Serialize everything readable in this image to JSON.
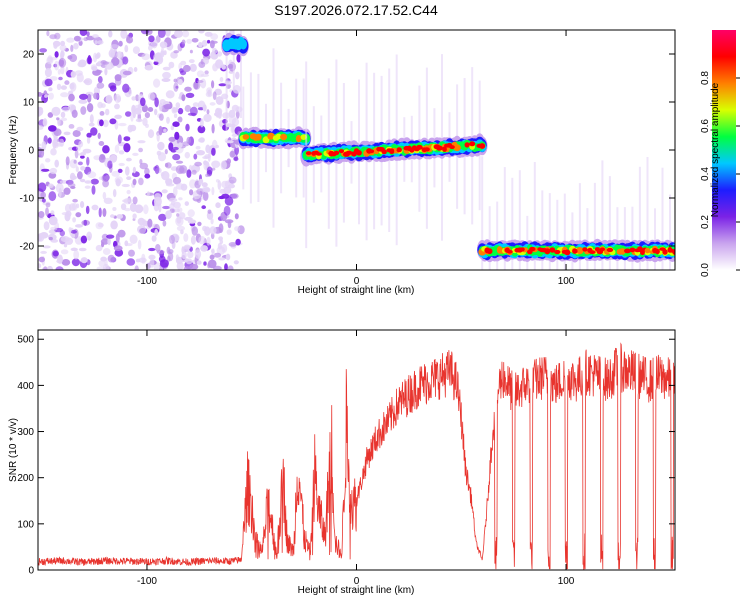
{
  "figure_title": "S197.2026.072.17.52.C44",
  "chart_data": [
    {
      "type": "heatmap",
      "title": "S197.2026.072.17.52.C44",
      "xlabel": "Height of straight line (km)",
      "ylabel": "Frequency (Hz)",
      "xlim": [
        -152,
        152
      ],
      "ylim": [
        -25,
        25
      ],
      "xticks": [
        -100,
        0,
        100
      ],
      "yticks": [
        -20,
        -10,
        0,
        10,
        20
      ],
      "colorbar": {
        "label": "Normalized spectral amplitude",
        "range": [
          0,
          1
        ],
        "ticks": [
          "0.0",
          "0.2",
          "0.4",
          "0.6",
          "0.8"
        ],
        "tick_values": [
          0,
          0.2,
          0.4,
          0.6,
          0.8
        ],
        "colors": [
          "#ffffff",
          "#c9a4ee",
          "#7b22e6",
          "#1d1dff",
          "#00c8ff",
          "#00ff40",
          "#d9ff00",
          "#ff7f00",
          "#ff0000",
          "#ff0066"
        ]
      },
      "segments": [
        {
          "x_start": -152,
          "x_end": -55,
          "frequency": null,
          "description": "noise"
        },
        {
          "x_start": -62,
          "x_end": -54,
          "frequency": 22,
          "amplitude": 0.45
        },
        {
          "x_start": -54,
          "x_end": -24,
          "frequency": 2.5,
          "amplitude": 0.7
        },
        {
          "x_start": -24,
          "x_end": 60,
          "frequency_start": -1,
          "frequency_end": 1,
          "amplitude": 0.85
        },
        {
          "x_start": 60,
          "x_end": 152,
          "frequency": -21,
          "amplitude": 0.85
        }
      ]
    },
    {
      "type": "line",
      "xlabel": "Height of straight line (km)",
      "ylabel": "SNR (10 * v/v)",
      "xlim": [
        -152,
        152
      ],
      "ylim": [
        0,
        520
      ],
      "xticks": [
        -100,
        0,
        100
      ],
      "yticks": [
        0,
        100,
        200,
        300,
        400,
        500
      ],
      "series": [
        {
          "name": "SNR",
          "color": "#e8342e",
          "x": [
            -152,
            -140,
            -130,
            -120,
            -110,
            -100,
            -90,
            -80,
            -70,
            -60,
            -55,
            -52,
            -50,
            -48,
            -45,
            -42,
            -40,
            -38,
            -35,
            -33,
            -30,
            -28,
            -25,
            -22,
            -20,
            -18,
            -15,
            -12,
            -10,
            -7,
            -5,
            -2,
            0,
            5,
            10,
            15,
            20,
            25,
            30,
            35,
            40,
            45,
            48,
            50,
            52,
            55,
            57,
            60,
            62,
            65,
            68,
            70,
            75,
            80,
            85,
            90,
            95,
            100,
            105,
            110,
            115,
            120,
            125,
            130,
            135,
            140,
            145,
            150,
            152
          ],
          "values": [
            18,
            20,
            17,
            20,
            19,
            18,
            20,
            17,
            20,
            19,
            22,
            180,
            140,
            60,
            40,
            150,
            90,
            30,
            200,
            60,
            40,
            240,
            70,
            35,
            210,
            130,
            70,
            280,
            60,
            30,
            310,
            140,
            150,
            240,
            290,
            320,
            360,
            380,
            400,
            410,
            420,
            430,
            400,
            330,
            220,
            150,
            60,
            20,
            120,
            300,
            400,
            420,
            380,
            400,
            410,
            420,
            400,
            420,
            410,
            430,
            420,
            410,
            440,
            430,
            420,
            410,
            420,
            410,
            400
          ]
        }
      ]
    }
  ]
}
